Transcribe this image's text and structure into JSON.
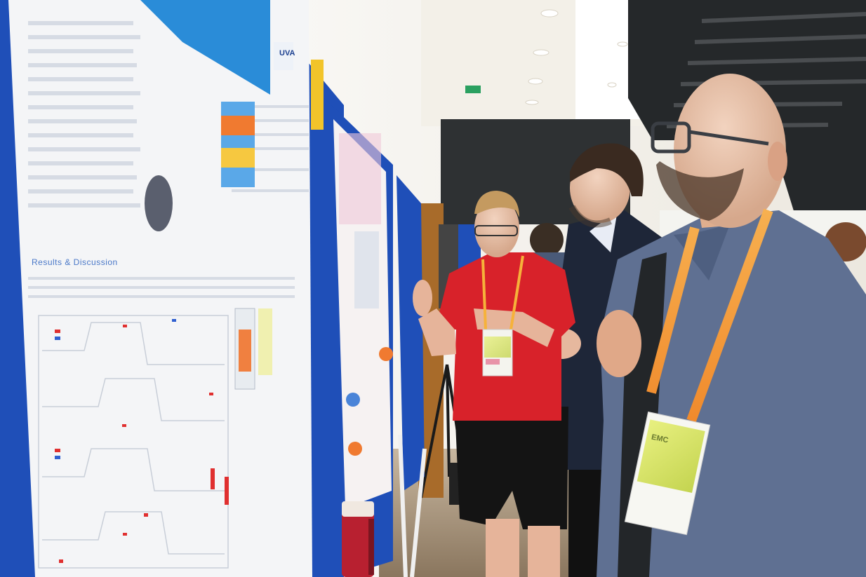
{
  "scene": {
    "description_labels": {
      "poster_left_heading": "Results & Discussion",
      "poster_left_badge": "UVA",
      "badge_person_right": "EMC"
    }
  },
  "colors": {
    "board_blue": "#1f4fb8",
    "poster_paper": "#f4f5f7",
    "shirt_red": "#d8222a",
    "polo_blue": "#5f7092",
    "suit_navy": "#1e2638",
    "lanyard_orange": "#f0a040",
    "badge_green": "#d9e86a",
    "wall_white": "#f2efe8",
    "ceiling": "#f5f2ea",
    "dark_wall": "#2e3133",
    "exit_sign": "#2aa060"
  }
}
